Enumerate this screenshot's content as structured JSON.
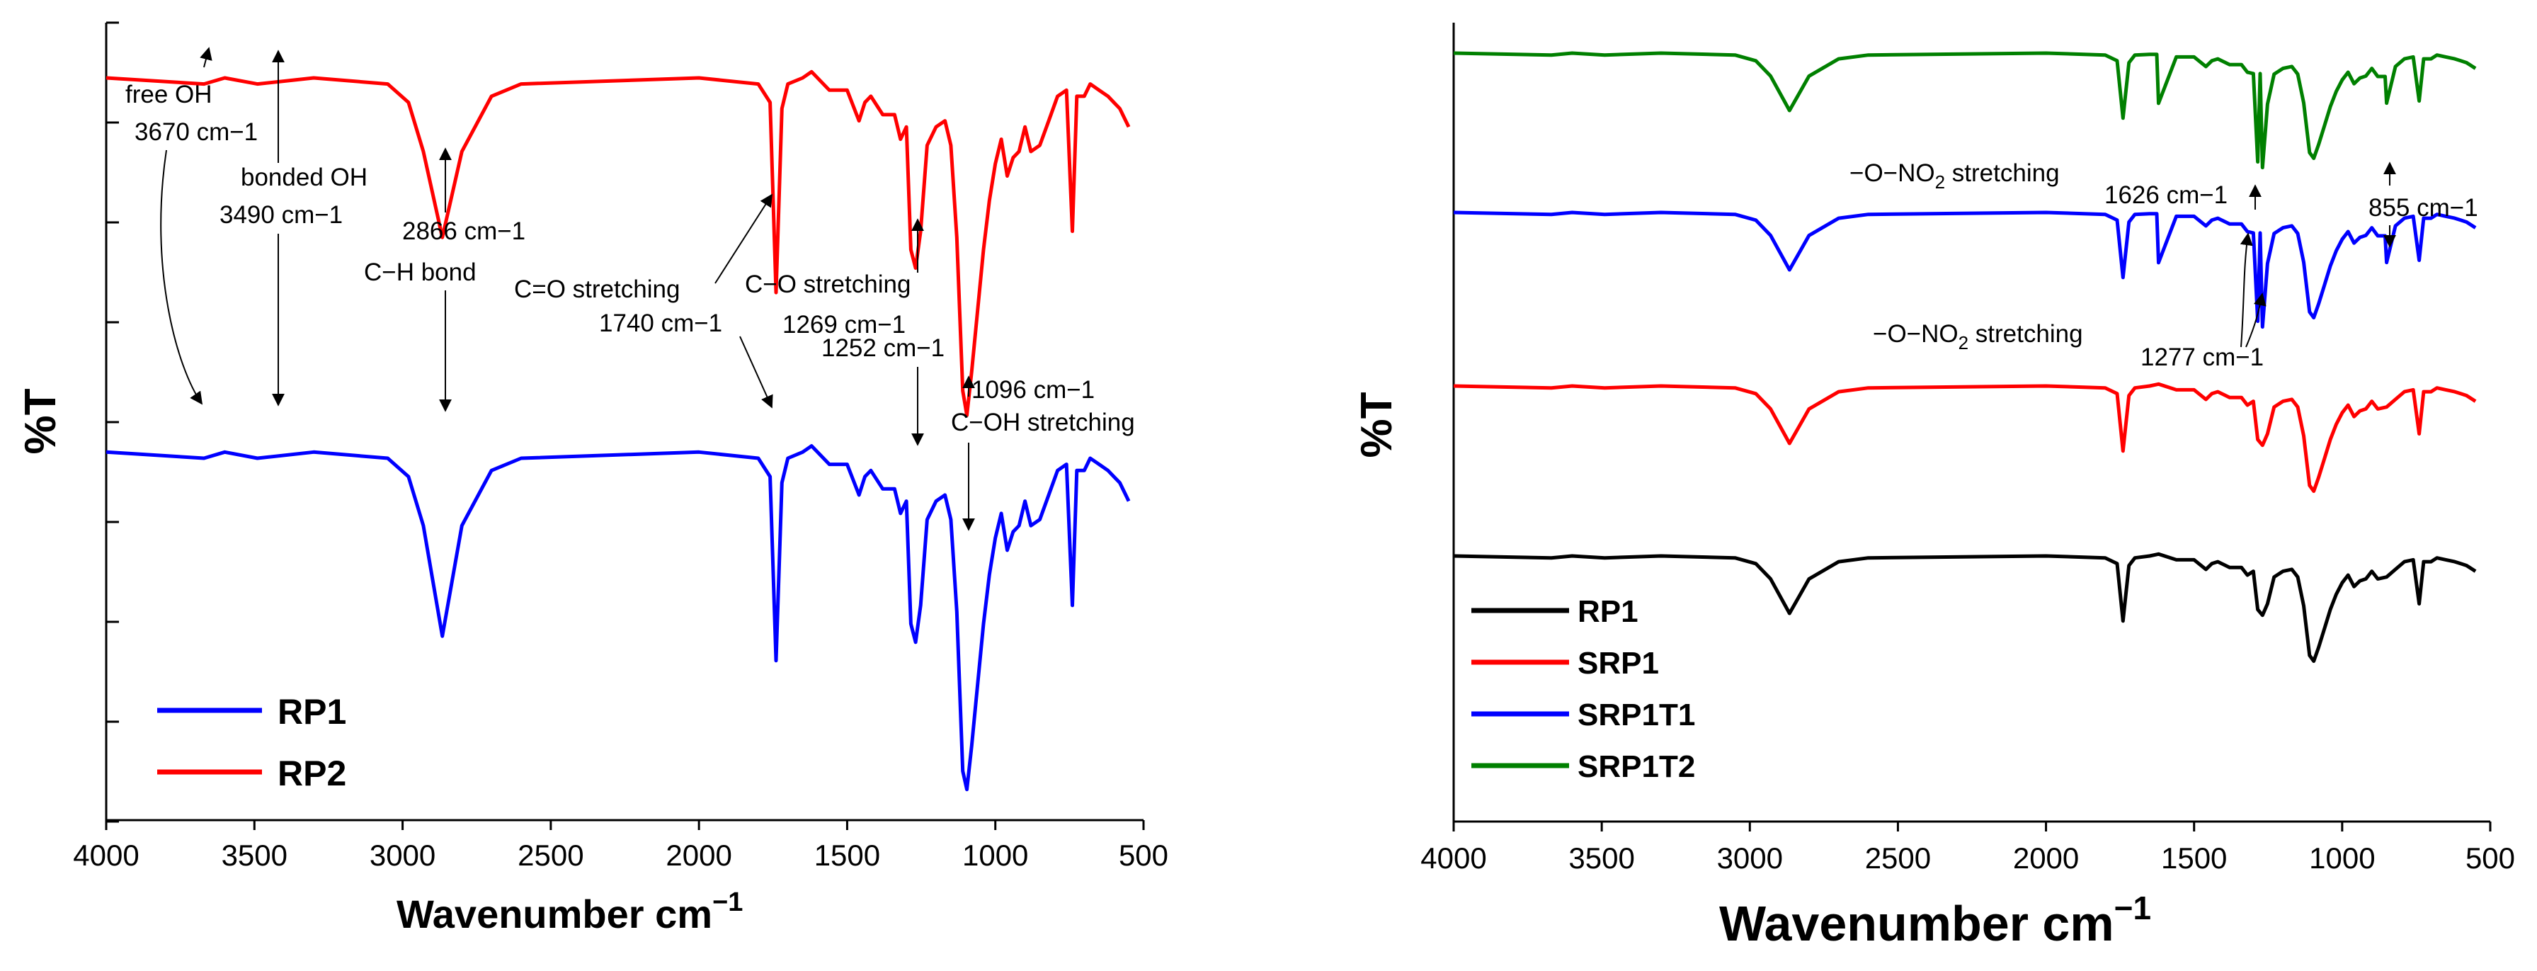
{
  "chart_data": [
    {
      "type": "line",
      "panel": "left",
      "xlabel_text": "Wavenumber cm",
      "xlabel_sup": "−1",
      "ylabel": "%T",
      "xlim": [
        4000,
        500
      ],
      "xticks": [
        "4000",
        "3500",
        "3000",
        "2500",
        "2000",
        "1500",
        "1000",
        "500"
      ],
      "series": [
        {
          "name": "RP1",
          "color": "#0000ff",
          "offset": 0,
          "points": [
            [
              4000,
              100
            ],
            [
              3670,
              99
            ],
            [
              3600,
              100
            ],
            [
              3490,
              99
            ],
            [
              3300,
              100
            ],
            [
              3050,
              99
            ],
            [
              2980,
              96
            ],
            [
              2930,
              88
            ],
            [
              2866,
              70
            ],
            [
              2800,
              88
            ],
            [
              2700,
              97
            ],
            [
              2600,
              99
            ],
            [
              2000,
              100
            ],
            [
              1800,
              99
            ],
            [
              1760,
              96
            ],
            [
              1740,
              66
            ],
            [
              1720,
              95
            ],
            [
              1700,
              99
            ],
            [
              1650,
              100
            ],
            [
              1620,
              101
            ],
            [
              1560,
              98
            ],
            [
              1500,
              98
            ],
            [
              1460,
              93
            ],
            [
              1440,
              96
            ],
            [
              1420,
              97
            ],
            [
              1380,
              94
            ],
            [
              1340,
              94
            ],
            [
              1320,
              90
            ],
            [
              1300,
              92
            ],
            [
              1285,
              72
            ],
            [
              1269,
              69
            ],
            [
              1252,
              75
            ],
            [
              1230,
              89
            ],
            [
              1200,
              92
            ],
            [
              1170,
              93
            ],
            [
              1150,
              89
            ],
            [
              1130,
              74
            ],
            [
              1110,
              48
            ],
            [
              1096,
              45
            ],
            [
              1080,
              52
            ],
            [
              1060,
              62
            ],
            [
              1040,
              72
            ],
            [
              1020,
              80
            ],
            [
              1000,
              86
            ],
            [
              980,
              90
            ],
            [
              960,
              84
            ],
            [
              940,
              87
            ],
            [
              920,
              88
            ],
            [
              900,
              92
            ],
            [
              880,
              88
            ],
            [
              850,
              89
            ],
            [
              820,
              93
            ],
            [
              790,
              97
            ],
            [
              760,
              98
            ],
            [
              740,
              75
            ],
            [
              725,
              97
            ],
            [
              700,
              97
            ],
            [
              680,
              99
            ],
            [
              650,
              98
            ],
            [
              620,
              97
            ],
            [
              600,
              96
            ],
            [
              580,
              95
            ],
            [
              560,
              93
            ],
            [
              550,
              92
            ]
          ]
        },
        {
          "name": "RP2",
          "color": "#ff0000",
          "offset": 0,
          "points": [
            [
              4000,
              161
            ],
            [
              3670,
              160
            ],
            [
              3600,
              161
            ],
            [
              3490,
              160
            ],
            [
              3300,
              161
            ],
            [
              3050,
              160
            ],
            [
              2980,
              157
            ],
            [
              2930,
              149
            ],
            [
              2866,
              135
            ],
            [
              2800,
              149
            ],
            [
              2700,
              158
            ],
            [
              2600,
              160
            ],
            [
              2000,
              161
            ],
            [
              1800,
              160
            ],
            [
              1760,
              157
            ],
            [
              1740,
              126
            ],
            [
              1720,
              156
            ],
            [
              1700,
              160
            ],
            [
              1650,
              161
            ],
            [
              1620,
              162
            ],
            [
              1560,
              159
            ],
            [
              1500,
              159
            ],
            [
              1460,
              154
            ],
            [
              1440,
              157
            ],
            [
              1420,
              158
            ],
            [
              1380,
              155
            ],
            [
              1340,
              155
            ],
            [
              1320,
              151
            ],
            [
              1300,
              153
            ],
            [
              1285,
              133
            ],
            [
              1269,
              130
            ],
            [
              1252,
              136
            ],
            [
              1230,
              150
            ],
            [
              1200,
              153
            ],
            [
              1170,
              154
            ],
            [
              1150,
              150
            ],
            [
              1130,
              135
            ],
            [
              1110,
              110
            ],
            [
              1096,
              106
            ],
            [
              1080,
              113
            ],
            [
              1060,
              123
            ],
            [
              1040,
              133
            ],
            [
              1020,
              141
            ],
            [
              1000,
              147
            ],
            [
              980,
              151
            ],
            [
              960,
              145
            ],
            [
              940,
              148
            ],
            [
              920,
              149
            ],
            [
              900,
              153
            ],
            [
              880,
              149
            ],
            [
              850,
              150
            ],
            [
              820,
              154
            ],
            [
              790,
              158
            ],
            [
              760,
              159
            ],
            [
              740,
              136
            ],
            [
              725,
              158
            ],
            [
              700,
              158
            ],
            [
              680,
              160
            ],
            [
              650,
              159
            ],
            [
              620,
              158
            ],
            [
              600,
              157
            ],
            [
              580,
              156
            ],
            [
              560,
              154
            ],
            [
              550,
              153
            ]
          ]
        }
      ],
      "legend": [
        {
          "label": "RP1",
          "color": "#0000ff"
        },
        {
          "label": "RP2",
          "color": "#ff0000"
        }
      ],
      "annotations": [
        {
          "id": "free-oh",
          "lines": [
            "free OH",
            "3670 cm−1"
          ]
        },
        {
          "id": "bonded-oh",
          "lines": [
            "bonded OH",
            "3490 cm−1"
          ]
        },
        {
          "id": "ch-bond",
          "lines": [
            "2866 cm−1",
            "C−H bond"
          ]
        },
        {
          "id": "co-stretch",
          "lines": [
            "C=O stretching",
            "1740 cm−1"
          ]
        },
        {
          "id": "c-o-stretch",
          "lines": [
            "C−O stretching",
            "1269 cm−1",
            "1252 cm−1"
          ]
        },
        {
          "id": "coh-stretch",
          "lines": [
            "1096 cm−1",
            "C−OH stretching"
          ]
        }
      ]
    },
    {
      "type": "line",
      "panel": "right",
      "xlabel_text": "Wavenumber cm",
      "xlabel_sup": "−1",
      "ylabel": "%T",
      "xlim": [
        4000,
        500
      ],
      "xticks": [
        "4000",
        "3500",
        "3000",
        "2500",
        "2000",
        "1500",
        "1000",
        "500"
      ],
      "series": [
        {
          "name": "RP1",
          "color": "#000000",
          "offset": 0
        },
        {
          "name": "SRP1",
          "color": "#ff0000",
          "offset": 1
        },
        {
          "name": "SRP1T1",
          "color": "#0000ff",
          "offset": 2
        },
        {
          "name": "SRP1T2",
          "color": "#008000",
          "offset": 3
        }
      ],
      "legend": [
        {
          "label": "RP1",
          "color": "#000000"
        },
        {
          "label": "SRP1",
          "color": "#ff0000"
        },
        {
          "label": "SRP1T1",
          "color": "#0000ff"
        },
        {
          "label": "SRP1T2",
          "color": "#008000"
        }
      ],
      "annotations": [
        {
          "id": "ono2-top",
          "lines": [
            "−O−NO2 stretching"
          ]
        },
        {
          "id": "peak-1626",
          "lines": [
            "1626 cm−1"
          ]
        },
        {
          "id": "peak-855",
          "lines": [
            "855 cm−1"
          ]
        },
        {
          "id": "ono2-bottom",
          "lines": [
            "−O−NO2 stretching"
          ]
        },
        {
          "id": "peak-1277",
          "lines": [
            "1277 cm−1"
          ]
        }
      ]
    }
  ]
}
